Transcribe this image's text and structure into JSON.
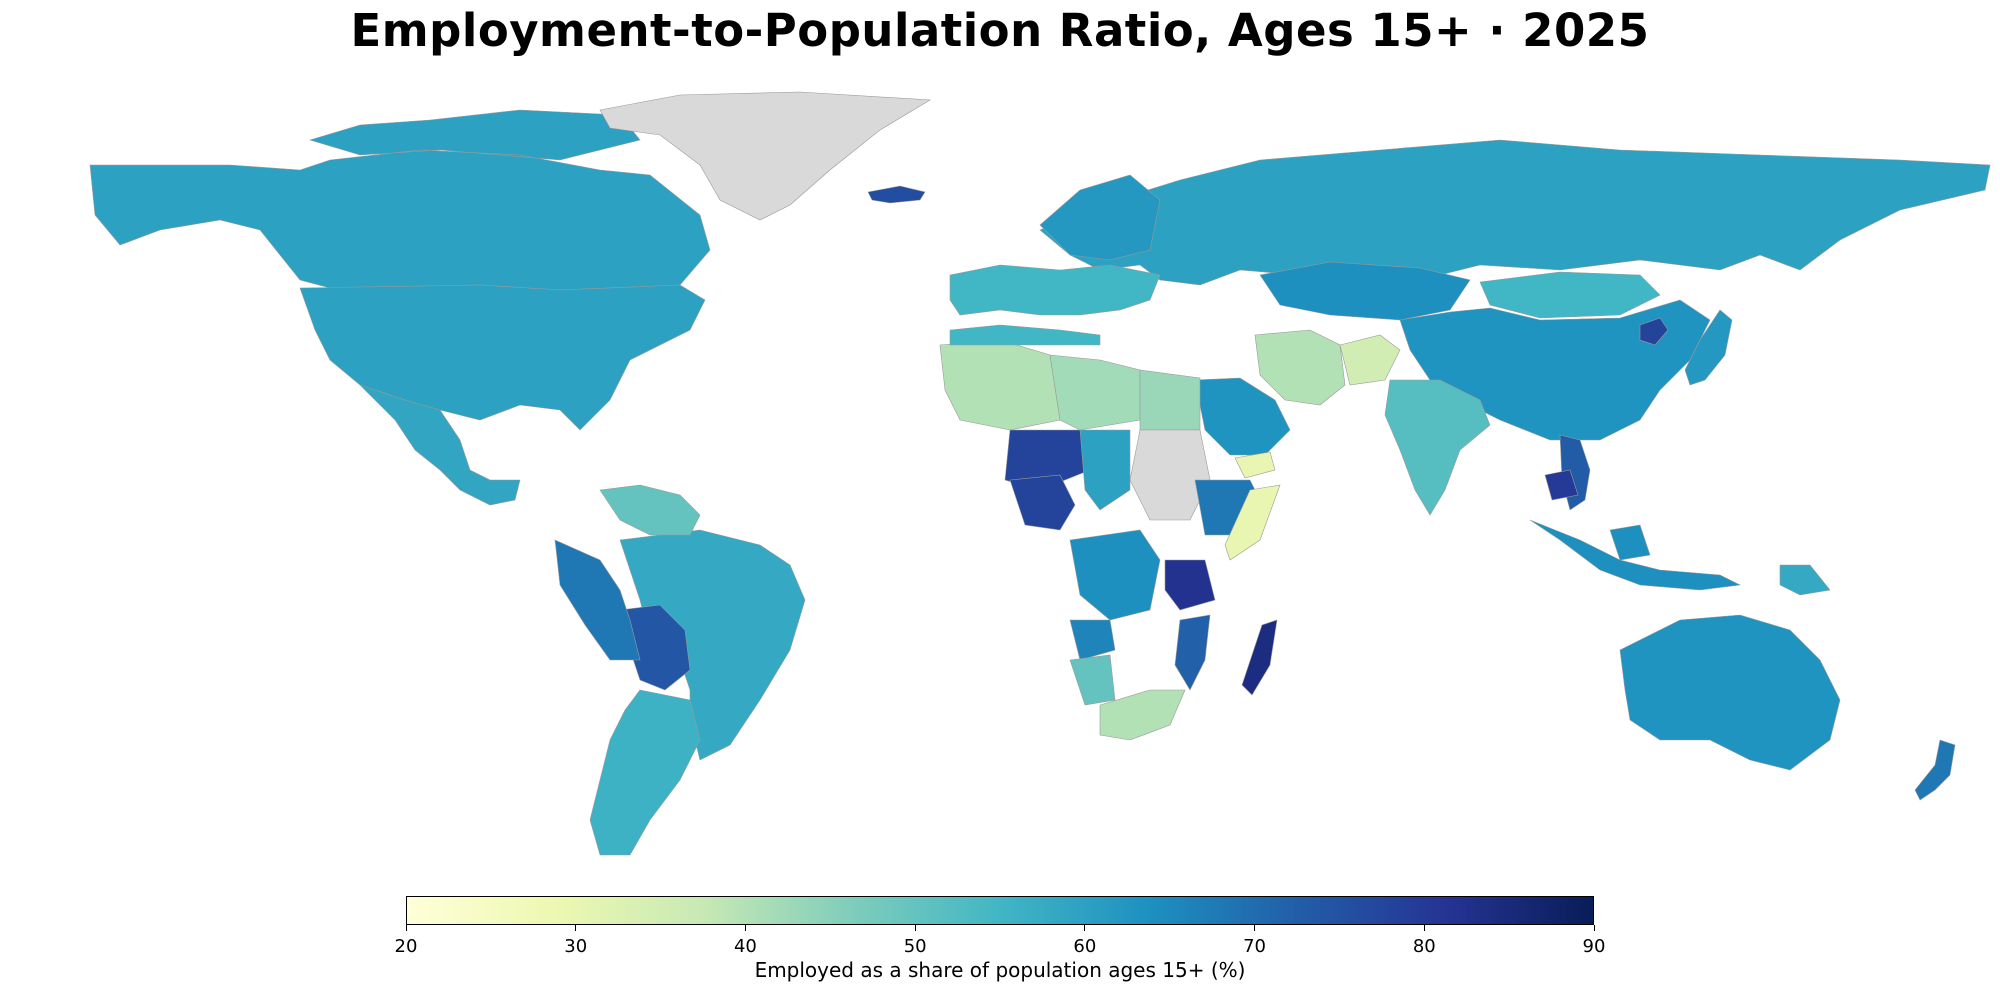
{
  "title": "Employment-to-Population Ratio, Ages 15+ · 2025",
  "colorbar": {
    "label": "Employed as a share of population ages 15+ (%)",
    "min": 20,
    "max": 90,
    "ticks": [
      "20",
      "30",
      "40",
      "50",
      "60",
      "70",
      "80",
      "90"
    ],
    "colormap": "YlGnBu",
    "stops": [
      "#ffffd9",
      "#edf8b1",
      "#c7e9b4",
      "#7fcdbb",
      "#41b6c4",
      "#1d91c0",
      "#225ea8",
      "#253494",
      "#081d58"
    ]
  },
  "no_data_color": "#d9d9d9",
  "chart_data": {
    "type": "choropleth",
    "title": "Employment-to-Population Ratio, Ages 15+ · 2025",
    "legend_label": "Employed as a share of population ages 15+ (%)",
    "range": [
      20,
      90
    ],
    "regions": [
      {
        "name": "Canada",
        "value": 60
      },
      {
        "name": "United States",
        "value": 60
      },
      {
        "name": "Mexico",
        "value": 59
      },
      {
        "name": "Greenland",
        "value": null
      },
      {
        "name": "Iceland",
        "value": 76
      },
      {
        "name": "Brazil",
        "value": 58
      },
      {
        "name": "Bolivia",
        "value": 74
      },
      {
        "name": "Peru",
        "value": 68
      },
      {
        "name": "Argentina",
        "value": 56
      },
      {
        "name": "Venezuela",
        "value": 50
      },
      {
        "name": "Russia",
        "value": 60
      },
      {
        "name": "China",
        "value": 63
      },
      {
        "name": "Kazakhstan",
        "value": 64
      },
      {
        "name": "Mongolia",
        "value": 55
      },
      {
        "name": "India",
        "value": 52
      },
      {
        "name": "Afghanistan",
        "value": 35
      },
      {
        "name": "Iran",
        "value": 40
      },
      {
        "name": "Saudi Arabia",
        "value": 63
      },
      {
        "name": "Yemen",
        "value": 30
      },
      {
        "name": "North Korea",
        "value": 78
      },
      {
        "name": "Japan",
        "value": 62
      },
      {
        "name": "Vietnam",
        "value": 73
      },
      {
        "name": "Cambodia",
        "value": 80
      },
      {
        "name": "Indonesia",
        "value": 64
      },
      {
        "name": "Papua New Guinea",
        "value": 58
      },
      {
        "name": "Australia",
        "value": 63
      },
      {
        "name": "New Zealand",
        "value": 68
      },
      {
        "name": "Algeria",
        "value": 40
      },
      {
        "name": "Libya",
        "value": 42
      },
      {
        "name": "Egypt",
        "value": 43
      },
      {
        "name": "Sudan",
        "value": null
      },
      {
        "name": "Niger",
        "value": 78
      },
      {
        "name": "Nigeria",
        "value": 78
      },
      {
        "name": "Chad",
        "value": 60
      },
      {
        "name": "Ethiopia",
        "value": 68
      },
      {
        "name": "Somalia",
        "value": 30
      },
      {
        "name": "Tanzania",
        "value": 82
      },
      {
        "name": "DR Congo",
        "value": 64
      },
      {
        "name": "Angola",
        "value": 66
      },
      {
        "name": "Namibia",
        "value": 50
      },
      {
        "name": "South Africa",
        "value": 40
      },
      {
        "name": "Madagascar",
        "value": 84
      },
      {
        "name": "Mozambique",
        "value": 72
      },
      {
        "name": "Europe (most countries)",
        "value": 55
      },
      {
        "name": "Scandinavia",
        "value": 62
      }
    ]
  }
}
